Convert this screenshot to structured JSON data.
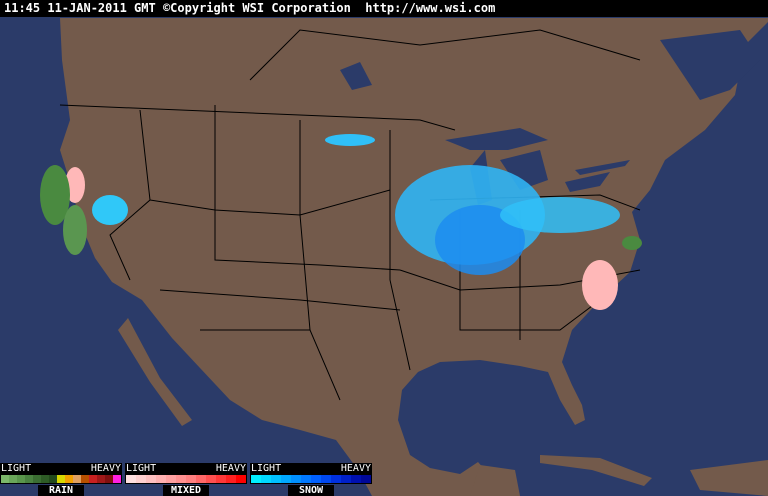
{
  "header": {
    "timestamp": "11:45 11-JAN-2011 GMT",
    "copyright": "©Copyright WSI Corporation",
    "url": "http://www.wsi.com"
  },
  "colors": {
    "ocean": "#2b3b69",
    "land": "#735a4b",
    "borders": "#000000"
  },
  "legend": [
    {
      "name": "RAIN",
      "light": "LIGHT",
      "heavy": "HEAVY",
      "colors": [
        "#7cb86a",
        "#6aa65a",
        "#5a964c",
        "#4a8240",
        "#3b6e32",
        "#2e5c26",
        "#224a1c",
        "#d8d800",
        "#f0a000",
        "#e0a060",
        "#b85000",
        "#c82020",
        "#a01818",
        "#801010",
        "#ff20e0"
      ]
    },
    {
      "name": "MIXED",
      "light": "LIGHT",
      "heavy": "HEAVY",
      "colors": [
        "#ffe0e0",
        "#ffd0d0",
        "#ffc0c0",
        "#ffb0b0",
        "#ffa0a0",
        "#ff9090",
        "#ff8080",
        "#ff6868",
        "#ff5050",
        "#ff3838",
        "#ff2020",
        "#ff0000"
      ]
    },
    {
      "name": "SNOW",
      "light": "LIGHT",
      "heavy": "HEAVY",
      "colors": [
        "#00f0ff",
        "#00d8ff",
        "#00c0ff",
        "#00a8ff",
        "#0090ff",
        "#0078ff",
        "#0060ff",
        "#0048f0",
        "#0030e0",
        "#0020c8",
        "#0010b0",
        "#000898"
      ]
    }
  ],
  "precipitation": [
    "snow",
    "mixed",
    "rain"
  ]
}
